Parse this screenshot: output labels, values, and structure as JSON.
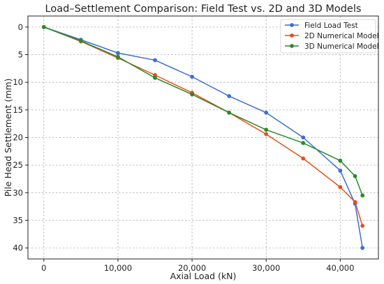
{
  "chart_data": {
    "type": "line",
    "title": "Load–Settlement Comparison: Field Test vs. 2D and 3D Models",
    "xlabel": "Axial Load (kN)",
    "ylabel": "Pile Head Settlement (mm)",
    "xlim": [
      -2150,
      45150
    ],
    "ylim": [
      42,
      -2
    ],
    "y_inverted": true,
    "grid": true,
    "legend_position": "top-right",
    "xticks": [
      0,
      10000,
      20000,
      30000,
      40000
    ],
    "xtick_labels": [
      "0",
      "10,000",
      "20,000",
      "30,000",
      "40,000"
    ],
    "yticks": [
      0,
      5,
      10,
      15,
      20,
      25,
      30,
      35,
      40
    ],
    "ytick_labels": [
      "0",
      "5",
      "10",
      "15",
      "20",
      "25",
      "30",
      "35",
      "40"
    ],
    "series": [
      {
        "name": "Field Load Test",
        "color": "#3b6fd4",
        "x": [
          0,
          5000,
          10000,
          15000,
          20000,
          25000,
          30000,
          35000,
          40000,
          42000,
          43000
        ],
        "y": [
          0,
          2.3,
          4.7,
          6.0,
          9.0,
          12.5,
          15.5,
          20.0,
          26.0,
          32.0,
          40.0
        ]
      },
      {
        "name": "2D Numerical Model",
        "color": "#e8501a",
        "x": [
          0,
          5000,
          10000,
          15000,
          20000,
          25000,
          30000,
          35000,
          40000,
          42000,
          43000
        ],
        "y": [
          0,
          2.6,
          5.6,
          8.7,
          11.9,
          15.5,
          19.4,
          23.8,
          29.0,
          31.7,
          36.0
        ]
      },
      {
        "name": "3D Numerical Model",
        "color": "#2a8a2a",
        "x": [
          0,
          5000,
          10000,
          15000,
          20000,
          25000,
          30000,
          35000,
          40000,
          42000,
          43000
        ],
        "y": [
          0,
          2.5,
          5.4,
          9.2,
          12.2,
          15.5,
          18.6,
          21.0,
          24.2,
          27.0,
          30.5
        ]
      }
    ]
  }
}
